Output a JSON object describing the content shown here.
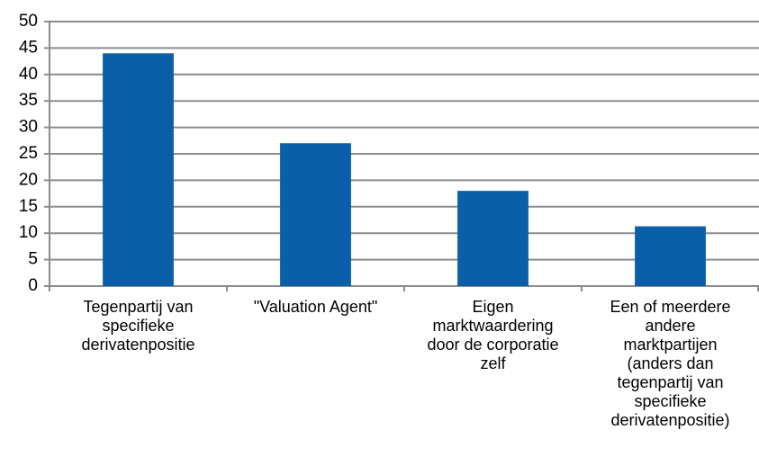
{
  "chart_data": {
    "type": "bar",
    "categories": [
      "Tegenpartij van\nspecifieke\nderivatenpositie",
      "\"Valuation Agent\"",
      "Eigen\nmarktwaardering\ndoor de corporatie\nzelf",
      "Een of meerdere\nandere\nmarktpartijen\n(anders dan\ntegenpartij van\nspecifieke\nderivatenpositie)"
    ],
    "values": [
      44,
      27,
      18,
      11.3
    ],
    "color": "#0b5ea8",
    "ylim": [
      0,
      50
    ],
    "yticks": [
      0,
      5,
      10,
      15,
      20,
      25,
      30,
      35,
      40,
      45,
      50
    ],
    "grid": true
  }
}
